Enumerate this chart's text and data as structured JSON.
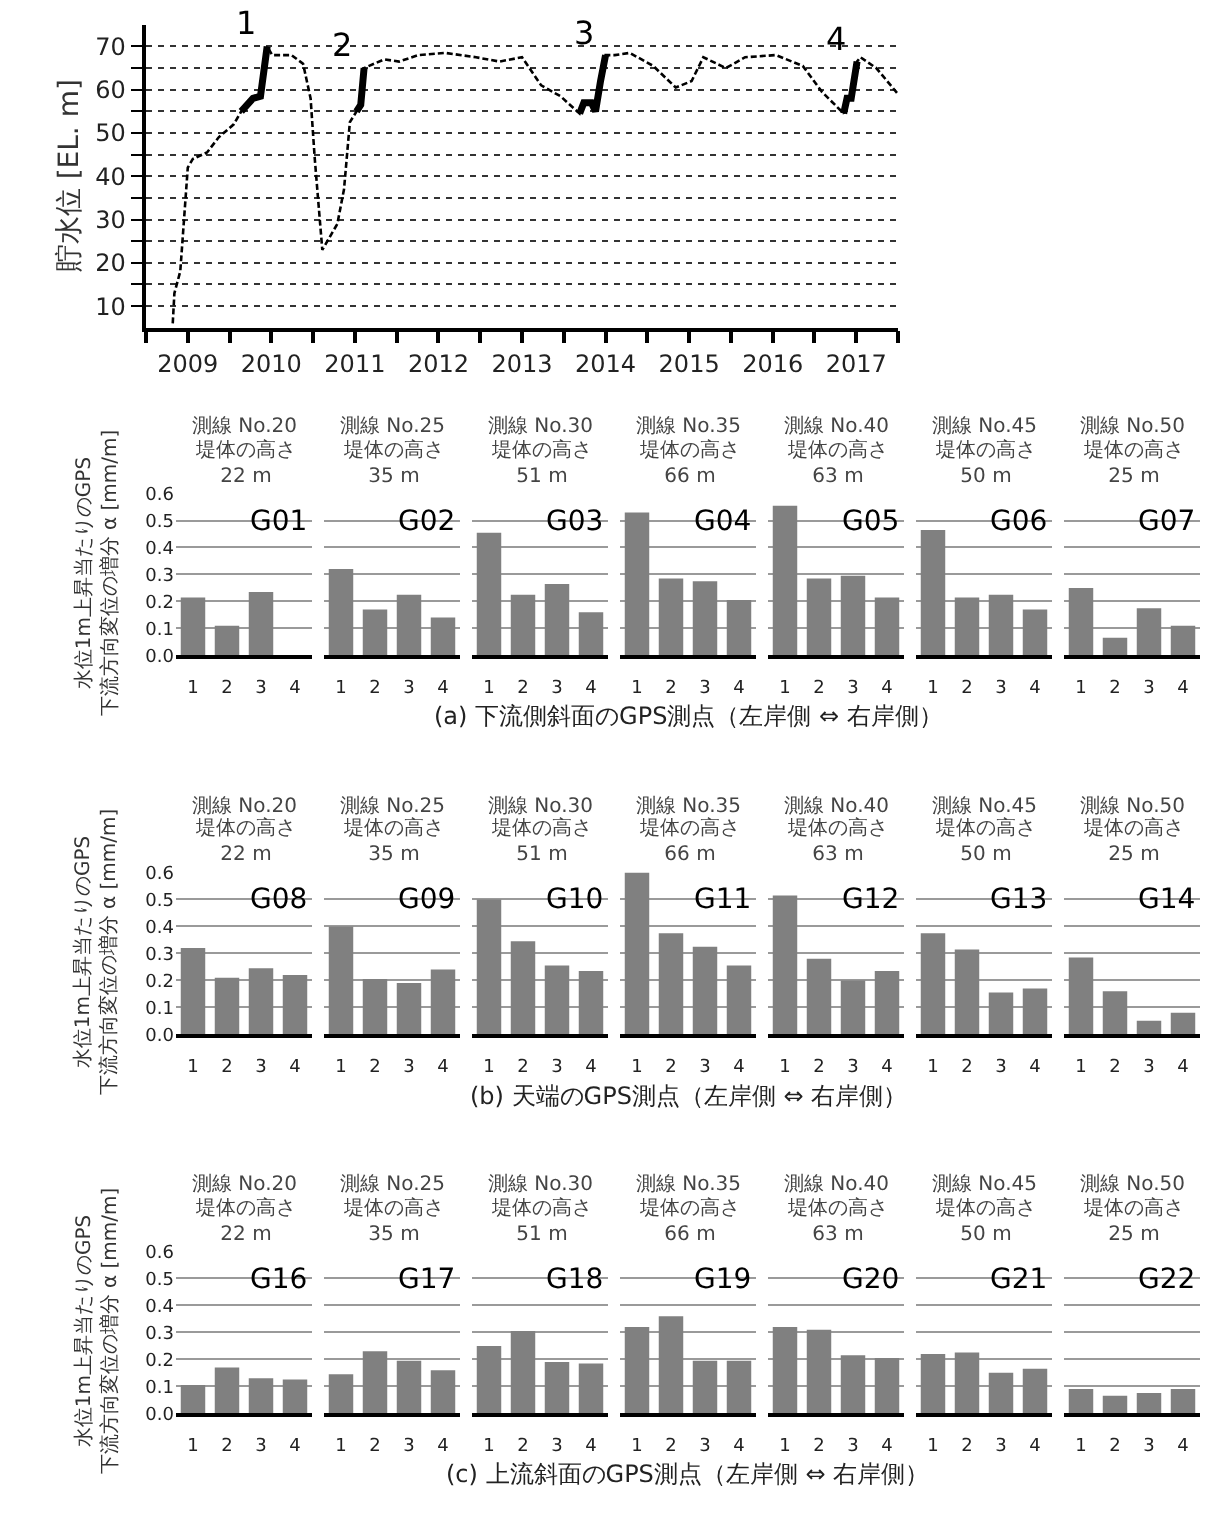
{
  "chart_data": [
    {
      "type": "line",
      "ylabel": "貯水位 [EL. m]",
      "xlim": [
        2009,
        2018
      ],
      "xticks": [
        {
          "value": 2009,
          "label": null
        },
        {
          "value": 2009.5,
          "label": "2009"
        },
        {
          "value": 2010,
          "label": null
        },
        {
          "value": 2010.5,
          "label": "2010"
        },
        {
          "value": 2011,
          "label": null
        },
        {
          "value": 2011.5,
          "label": "2011"
        },
        {
          "value": 2012,
          "label": null
        },
        {
          "value": 2012.5,
          "label": "2012"
        },
        {
          "value": 2013,
          "label": null
        },
        {
          "value": 2013.5,
          "label": "2013"
        },
        {
          "value": 2014,
          "label": null
        },
        {
          "value": 2014.5,
          "label": "2014"
        },
        {
          "value": 2015,
          "label": null
        },
        {
          "value": 2015.5,
          "label": "2015"
        },
        {
          "value": 2016,
          "label": null
        },
        {
          "value": 2016.5,
          "label": "2016"
        },
        {
          "value": 2017,
          "label": null
        },
        {
          "value": 2017.5,
          "label": "2017"
        },
        {
          "value": 2018,
          "label": null
        }
      ],
      "ylim": [
        5,
        75
      ],
      "yticks": [
        10,
        {
          "value": 15,
          "label": null
        },
        20,
        {
          "value": 25,
          "label": null
        },
        30,
        {
          "value": 35,
          "label": null
        },
        40,
        {
          "value": 45,
          "label": null
        },
        50,
        {
          "value": 55,
          "label": null
        },
        60,
        {
          "value": 65,
          "label": null
        },
        70
      ],
      "grid": "y",
      "annotations": [
        {
          "text": "1",
          "x": 2010.45,
          "y": 70
        },
        {
          "text": "2",
          "x": 2011.61,
          "y": 65
        },
        {
          "text": "3",
          "x": 2014.5,
          "y": 68
        },
        {
          "text": "4",
          "x": 2017.51,
          "y": 66.5
        }
      ],
      "series": [
        {
          "color": "#000000",
          "line_style": "dotted",
          "x": [
            2009.32,
            2009.34,
            2009.41,
            2009.5,
            2009.56,
            2009.73,
            2009.87,
            2010.05,
            2010.14,
            2010.28,
            2010.37,
            2010.45,
            2010.51,
            2010.74,
            2010.88,
            2010.97,
            2011.02,
            2011.11,
            2011.29,
            2011.37,
            2011.44,
            2011.52,
            2011.57,
            2011.61,
            2011.67,
            2011.85,
            2012.03,
            2012.26,
            2012.58,
            2012.95,
            2013.23,
            2013.5,
            2013.73,
            2013.96,
            2014.19,
            2014.24,
            2014.33,
            2014.38,
            2014.44,
            2014.5,
            2014.61,
            2014.79,
            2015.07,
            2015.34,
            2015.53,
            2015.67,
            2015.94,
            2016.17,
            2016.54,
            2016.86,
            2017.09,
            2017.35,
            2017.39,
            2017.44,
            2017.51,
            2017.55,
            2017.74,
            2018.0
          ],
          "values": [
            6,
            13,
            18,
            42,
            44,
            45.5,
            49,
            52,
            55,
            58,
            58.5,
            70,
            68,
            68,
            66,
            58,
            44,
            23,
            29,
            37,
            52.5,
            55,
            56.5,
            65,
            65.5,
            67,
            66.5,
            68,
            68.5,
            67.5,
            66.5,
            67.5,
            61,
            58.5,
            54.5,
            57,
            57,
            55,
            62,
            68,
            68,
            68.5,
            65.5,
            60.5,
            62,
            67.5,
            65,
            67.5,
            68,
            65.5,
            59.5,
            54.5,
            58,
            58,
            66.5,
            67.5,
            65,
            59
          ]
        },
        {
          "color": "#000000",
          "line_style": "solid",
          "x": [
            2010.14,
            2010.28,
            2010.37,
            2010.45,
            2010.9,
            2011.52,
            2011.57,
            2011.61,
            2012.5,
            2014.19,
            2014.24,
            2014.33,
            2014.38,
            2014.44,
            2014.5,
            2016.0,
            2017.35,
            2017.39,
            2017.44,
            2017.51
          ],
          "values": [
            55,
            58,
            58.5,
            70,
            null,
            55,
            56.5,
            65,
            null,
            54.5,
            57,
            57,
            55,
            62,
            68,
            null,
            54.5,
            58,
            58,
            66.5
          ]
        }
      ]
    },
    {
      "type": "bar",
      "title": "測線 No.20",
      "subtitle": "堤体の高さ 22 m",
      "annotations": [
        "G01"
      ],
      "ylabel": "水位1m上昇当たりのGPS\n下流方向変位の増分 α [mm/m]",
      "categories": [
        "1",
        "2",
        "3",
        "4"
      ],
      "values": [
        0.215,
        0.11,
        0.235,
        null
      ],
      "color": "#808080",
      "ylim": [
        0,
        0.6
      ],
      "yticks": [
        {
          "value": 0,
          "label": "0.0"
        },
        0.1,
        0.2,
        0.3,
        0.4,
        0.5,
        0.6
      ],
      "grid": "y"
    },
    {
      "type": "bar",
      "title": "測線 No.25",
      "subtitle": "堤体の高さ 35 m",
      "annotations": [
        "G02"
      ],
      "categories": [
        "1",
        "2",
        "3",
        "4"
      ],
      "values": [
        0.32,
        0.17,
        0.225,
        0.14
      ],
      "color": "#808080",
      "ylim": [
        0,
        0.6
      ],
      "yticks": [
        0,
        0.1,
        0.2,
        0.3,
        0.4,
        0.5,
        0.6
      ],
      "grid": "y",
      "tick_labels": "x"
    },
    {
      "type": "bar",
      "title": "測線 No.30",
      "subtitle": "堤体の高さ 51 m",
      "annotations": [
        "G03"
      ],
      "categories": [
        "1",
        "2",
        "3",
        "4"
      ],
      "values": [
        0.455,
        0.225,
        0.265,
        0.16
      ],
      "color": "#808080",
      "ylim": [
        0,
        0.6
      ],
      "yticks": [
        0,
        0.1,
        0.2,
        0.3,
        0.4,
        0.5,
        0.6
      ],
      "grid": "y",
      "tick_labels": "x"
    },
    {
      "type": "bar",
      "title": "測線 No.35",
      "subtitle": "堤体の高さ 66 m",
      "annotations": [
        "G04"
      ],
      "xlabel": "(a) 下流側斜面のGPS測点（左岸側 ⇔ 右岸側）",
      "categories": [
        "1",
        "2",
        "3",
        "4"
      ],
      "values": [
        0.53,
        0.285,
        0.275,
        0.205
      ],
      "color": "#808080",
      "ylim": [
        0,
        0.6
      ],
      "yticks": [
        0,
        0.1,
        0.2,
        0.3,
        0.4,
        0.5,
        0.6
      ],
      "grid": "y",
      "tick_labels": "x"
    },
    {
      "type": "bar",
      "title": "測線 No.40",
      "subtitle": "堤体の高さ 63 m",
      "annotations": [
        "G05"
      ],
      "categories": [
        "1",
        "2",
        "3",
        "4"
      ],
      "values": [
        0.555,
        0.285,
        0.295,
        0.215
      ],
      "color": "#808080",
      "ylim": [
        0,
        0.6
      ],
      "yticks": [
        0,
        0.1,
        0.2,
        0.3,
        0.4,
        0.5,
        0.6
      ],
      "grid": "y",
      "tick_labels": "x"
    },
    {
      "type": "bar",
      "title": "測線 No.45",
      "subtitle": "堤体の高さ 50 m",
      "annotations": [
        "G06"
      ],
      "categories": [
        "1",
        "2",
        "3",
        "4"
      ],
      "values": [
        0.465,
        0.215,
        0.225,
        0.17
      ],
      "color": "#808080",
      "ylim": [
        0,
        0.6
      ],
      "yticks": [
        0,
        0.1,
        0.2,
        0.3,
        0.4,
        0.5,
        0.6
      ],
      "grid": "y",
      "tick_labels": "x"
    },
    {
      "type": "bar",
      "title": "測線 No.50",
      "subtitle": "堤体の高さ 25 m",
      "annotations": [
        "G07"
      ],
      "categories": [
        "1",
        "2",
        "3",
        "4"
      ],
      "values": [
        0.25,
        0.065,
        0.175,
        0.11
      ],
      "color": "#808080",
      "ylim": [
        0,
        0.6
      ],
      "yticks": [
        0,
        0.1,
        0.2,
        0.3,
        0.4,
        0.5,
        0.6
      ],
      "grid": "y",
      "tick_labels": "x"
    },
    {
      "type": "bar",
      "title": "測線 No.20",
      "subtitle": "堤体の高さ 22 m",
      "annotations": [
        "G08"
      ],
      "ylabel": "水位1m上昇当たりのGPS\n下流方向変位の増分 α [mm/m]",
      "categories": [
        "1",
        "2",
        "3",
        "4"
      ],
      "values": [
        0.32,
        0.21,
        0.245,
        0.22
      ],
      "color": "#808080",
      "ylim": [
        0,
        0.6
      ],
      "yticks": [
        {
          "value": 0,
          "label": "0.0"
        },
        0.1,
        0.2,
        0.3,
        0.4,
        0.5,
        0.6
      ],
      "grid": "y"
    },
    {
      "type": "bar",
      "title": "測線 No.25",
      "subtitle": "堤体の高さ 35 m",
      "annotations": [
        "G09"
      ],
      "categories": [
        "1",
        "2",
        "3",
        "4"
      ],
      "values": [
        0.4,
        0.205,
        0.19,
        0.24
      ],
      "color": "#808080",
      "ylim": [
        0,
        0.6
      ],
      "yticks": [
        0,
        0.1,
        0.2,
        0.3,
        0.4,
        0.5,
        0.6
      ],
      "grid": "y",
      "tick_labels": "x"
    },
    {
      "type": "bar",
      "title": "測線 No.30",
      "subtitle": "堤体の高さ 51 m",
      "annotations": [
        "G10"
      ],
      "categories": [
        "1",
        "2",
        "3",
        "4"
      ],
      "values": [
        0.5,
        0.345,
        0.255,
        0.235
      ],
      "color": "#808080",
      "ylim": [
        0,
        0.6
      ],
      "yticks": [
        0,
        0.1,
        0.2,
        0.3,
        0.4,
        0.5,
        0.6
      ],
      "grid": "y",
      "tick_labels": "x"
    },
    {
      "type": "bar",
      "title": "測線 No.35",
      "subtitle": "堤体の高さ 66 m",
      "annotations": [
        "G11"
      ],
      "xlabel": "(b) 天端のGPS測点（左岸側 ⇔ 右岸側）",
      "categories": [
        "1",
        "2",
        "3",
        "4"
      ],
      "values": [
        0.6,
        0.375,
        0.325,
        0.255
      ],
      "color": "#808080",
      "ylim": [
        0,
        0.6
      ],
      "yticks": [
        0,
        0.1,
        0.2,
        0.3,
        0.4,
        0.5,
        0.6
      ],
      "grid": "y",
      "tick_labels": "x"
    },
    {
      "type": "bar",
      "title": "測線 No.40",
      "subtitle": "堤体の高さ 63 m",
      "annotations": [
        "G12"
      ],
      "categories": [
        "1",
        "2",
        "3",
        "4"
      ],
      "values": [
        0.515,
        0.28,
        0.2,
        0.235
      ],
      "color": "#808080",
      "ylim": [
        0,
        0.6
      ],
      "yticks": [
        0,
        0.1,
        0.2,
        0.3,
        0.4,
        0.5,
        0.6
      ],
      "grid": "y",
      "tick_labels": "x"
    },
    {
      "type": "bar",
      "title": "測線 No.45",
      "subtitle": "堤体の高さ 50 m",
      "annotations": [
        "G13"
      ],
      "categories": [
        "1",
        "2",
        "3",
        "4"
      ],
      "values": [
        0.375,
        0.315,
        0.155,
        0.17
      ],
      "color": "#808080",
      "ylim": [
        0,
        0.6
      ],
      "yticks": [
        0,
        0.1,
        0.2,
        0.3,
        0.4,
        0.5,
        0.6
      ],
      "grid": "y",
      "tick_labels": "x"
    },
    {
      "type": "bar",
      "title": "測線 No.50",
      "subtitle": "堤体の高さ 25 m",
      "annotations": [
        "G14"
      ],
      "categories": [
        "1",
        "2",
        "3",
        "4"
      ],
      "values": [
        0.285,
        0.16,
        0.05,
        0.08
      ],
      "color": "#808080",
      "ylim": [
        0,
        0.6
      ],
      "yticks": [
        0,
        0.1,
        0.2,
        0.3,
        0.4,
        0.5,
        0.6
      ],
      "grid": "y",
      "tick_labels": "x"
    },
    {
      "type": "bar",
      "title": "測線 No.20",
      "subtitle": "堤体の高さ 22 m",
      "annotations": [
        "G16"
      ],
      "ylabel": "水位1m上昇当たりのGPS\n下流方向変位の増分 α [mm/m]",
      "categories": [
        "1",
        "2",
        "3",
        "4"
      ],
      "values": [
        0.105,
        0.17,
        0.13,
        0.125
      ],
      "color": "#808080",
      "ylim": [
        0,
        0.6
      ],
      "yticks": [
        {
          "value": 0,
          "label": "0.0"
        },
        0.1,
        0.2,
        0.3,
        0.4,
        0.5,
        0.6
      ],
      "grid": "y"
    },
    {
      "type": "bar",
      "title": "測線 No.25",
      "subtitle": "堤体の高さ 35 m",
      "annotations": [
        "G17"
      ],
      "categories": [
        "1",
        "2",
        "3",
        "4"
      ],
      "values": [
        0.145,
        0.23,
        0.195,
        0.16
      ],
      "color": "#808080",
      "ylim": [
        0,
        0.6
      ],
      "yticks": [
        0,
        0.1,
        0.2,
        0.3,
        0.4,
        0.5,
        0.6
      ],
      "grid": "y",
      "tick_labels": "x"
    },
    {
      "type": "bar",
      "title": "測線 No.30",
      "subtitle": "堤体の高さ 51 m",
      "annotations": [
        "G18"
      ],
      "categories": [
        "1",
        "2",
        "3",
        "4"
      ],
      "values": [
        0.25,
        0.305,
        0.19,
        0.185
      ],
      "color": "#808080",
      "ylim": [
        0,
        0.6
      ],
      "yticks": [
        0,
        0.1,
        0.2,
        0.3,
        0.4,
        0.5,
        0.6
      ],
      "grid": "y",
      "tick_labels": "x"
    },
    {
      "type": "bar",
      "title": "測線 No.35",
      "subtitle": "堤体の高さ 66 m",
      "annotations": [
        "G19"
      ],
      "xlabel": "(c) 上流斜面のGPS測点（左岸側 ⇔ 右岸側）",
      "categories": [
        "1",
        "2",
        "3",
        "4"
      ],
      "values": [
        0.32,
        0.36,
        0.195,
        0.195
      ],
      "color": "#808080",
      "ylim": [
        0,
        0.6
      ],
      "yticks": [
        0,
        0.1,
        0.2,
        0.3,
        0.4,
        0.5,
        0.6
      ],
      "grid": "y",
      "tick_labels": "x"
    },
    {
      "type": "bar",
      "title": "測線 No.40",
      "subtitle": "堤体の高さ 63 m",
      "annotations": [
        "G20"
      ],
      "categories": [
        "1",
        "2",
        "3",
        "4"
      ],
      "values": [
        0.32,
        0.31,
        0.215,
        0.205
      ],
      "color": "#808080",
      "ylim": [
        0,
        0.6
      ],
      "yticks": [
        0,
        0.1,
        0.2,
        0.3,
        0.4,
        0.5,
        0.6
      ],
      "grid": "y",
      "tick_labels": "x"
    },
    {
      "type": "bar",
      "title": "測線 No.45",
      "subtitle": "堤体の高さ 50 m",
      "annotations": [
        "G21"
      ],
      "categories": [
        "1",
        "2",
        "3",
        "4"
      ],
      "values": [
        0.22,
        0.225,
        0.15,
        0.165
      ],
      "color": "#808080",
      "ylim": [
        0,
        0.6
      ],
      "yticks": [
        0,
        0.1,
        0.2,
        0.3,
        0.4,
        0.5,
        0.6
      ],
      "grid": "y",
      "tick_labels": "x"
    },
    {
      "type": "bar",
      "title": "測線 No.50",
      "subtitle": "堤体の高さ 25 m",
      "annotations": [
        "G22"
      ],
      "categories": [
        "1",
        "2",
        "3",
        "4"
      ],
      "values": [
        0.09,
        0.065,
        0.075,
        0.09
      ],
      "color": "#808080",
      "ylim": [
        0,
        0.6
      ],
      "yticks": [
        0,
        0.1,
        0.2,
        0.3,
        0.4,
        0.5,
        0.6
      ],
      "grid": "y",
      "tick_labels": "x"
    }
  ]
}
